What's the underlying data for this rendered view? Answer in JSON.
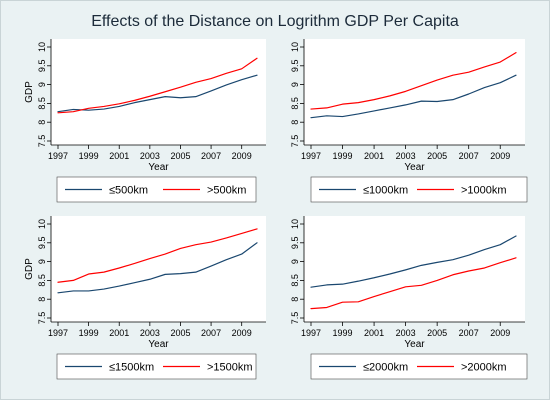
{
  "title": "Effects of the Distance on Logrithm GDP Per Capita",
  "colors": {
    "background": "#eaf2f3",
    "plot_background": "#ffffff",
    "axis": "#000000",
    "title": "#1c2b3a",
    "legend_border": "#4a4a4a",
    "legend_background": "#ffffff"
  },
  "chart_data": [
    {
      "type": "line",
      "xlabel": "Year",
      "ylabel": "GDP",
      "x": [
        1997,
        1998,
        1999,
        2000,
        2001,
        2002,
        2003,
        2004,
        2005,
        2006,
        2007,
        2008,
        2009,
        2010
      ],
      "xlim": [
        1997,
        2010
      ],
      "ylim": [
        7.5,
        10
      ],
      "xticks": [
        "1997",
        "1999",
        "2001",
        "2003",
        "2005",
        "2007",
        "2009"
      ],
      "yticks": [
        "7.5",
        "8",
        "8.5",
        "9",
        "9.5",
        "10"
      ],
      "grid": false,
      "legend_position": "bottom",
      "series": [
        {
          "name": "≤500km",
          "color": "#1a476f",
          "values": [
            8.28,
            8.34,
            8.32,
            8.35,
            8.42,
            8.52,
            8.6,
            8.68,
            8.65,
            8.68,
            8.83,
            8.99,
            9.13,
            9.25
          ]
        },
        {
          "name": ">500km",
          "color": "#ff0000",
          "values": [
            8.25,
            8.28,
            8.37,
            8.42,
            8.49,
            8.58,
            8.69,
            8.81,
            8.93,
            9.06,
            9.16,
            9.3,
            9.42,
            9.7
          ]
        }
      ]
    },
    {
      "type": "line",
      "xlabel": "Year",
      "ylabel": "",
      "x": [
        1997,
        1998,
        1999,
        2000,
        2001,
        2002,
        2003,
        2004,
        2005,
        2006,
        2007,
        2008,
        2009,
        2010
      ],
      "xlim": [
        1997,
        2010
      ],
      "ylim": [
        7.5,
        10
      ],
      "xticks": [
        "1997",
        "1999",
        "2001",
        "2003",
        "2005",
        "2007",
        "2009"
      ],
      "yticks": [
        "7.5",
        "8",
        "8.5",
        "9",
        "9.5",
        "10"
      ],
      "grid": false,
      "legend_position": "bottom",
      "series": [
        {
          "name": "≤1000km",
          "color": "#1a476f",
          "values": [
            8.12,
            8.17,
            8.15,
            8.22,
            8.3,
            8.38,
            8.46,
            8.56,
            8.55,
            8.6,
            8.75,
            8.92,
            9.05,
            9.25
          ]
        },
        {
          "name": ">1000km",
          "color": "#ff0000",
          "values": [
            8.35,
            8.38,
            8.48,
            8.52,
            8.6,
            8.7,
            8.82,
            8.97,
            9.12,
            9.25,
            9.33,
            9.47,
            9.6,
            9.85
          ]
        }
      ]
    },
    {
      "type": "line",
      "xlabel": "Year",
      "ylabel": "GDP",
      "x": [
        1997,
        1998,
        1999,
        2000,
        2001,
        2002,
        2003,
        2004,
        2005,
        2006,
        2007,
        2008,
        2009,
        2010
      ],
      "xlim": [
        1997,
        2010
      ],
      "ylim": [
        7.5,
        10
      ],
      "xticks": [
        "1997",
        "1999",
        "2001",
        "2003",
        "2005",
        "2007",
        "2009"
      ],
      "yticks": [
        "7.5",
        "8",
        "8.5",
        "9",
        "9.5",
        "10"
      ],
      "grid": false,
      "legend_position": "bottom",
      "series": [
        {
          "name": "≤1500km",
          "color": "#1a476f",
          "values": [
            8.17,
            8.22,
            8.22,
            8.27,
            8.35,
            8.44,
            8.53,
            8.66,
            8.68,
            8.72,
            8.88,
            9.05,
            9.2,
            9.5
          ]
        },
        {
          "name": ">1500km",
          "color": "#ff0000",
          "values": [
            8.45,
            8.5,
            8.67,
            8.72,
            8.83,
            8.95,
            9.08,
            9.2,
            9.35,
            9.45,
            9.52,
            9.63,
            9.75,
            9.87
          ]
        }
      ]
    },
    {
      "type": "line",
      "xlabel": "Year",
      "ylabel": "",
      "x": [
        1997,
        1998,
        1999,
        2000,
        2001,
        2002,
        2003,
        2004,
        2005,
        2006,
        2007,
        2008,
        2009,
        2010
      ],
      "xlim": [
        1997,
        2010
      ],
      "ylim": [
        7.5,
        10
      ],
      "xticks": [
        "1997",
        "1999",
        "2001",
        "2003",
        "2005",
        "2007",
        "2009"
      ],
      "yticks": [
        "7.5",
        "8",
        "8.5",
        "9",
        "9.5",
        "10"
      ],
      "grid": false,
      "legend_position": "bottom",
      "series": [
        {
          "name": "≤2000km",
          "color": "#1a476f",
          "values": [
            8.32,
            8.38,
            8.4,
            8.48,
            8.57,
            8.67,
            8.78,
            8.9,
            8.98,
            9.05,
            9.17,
            9.32,
            9.45,
            9.68
          ]
        },
        {
          "name": ">2000km",
          "color": "#ff0000",
          "values": [
            7.75,
            7.78,
            7.92,
            7.93,
            8.07,
            8.2,
            8.33,
            8.37,
            8.5,
            8.65,
            8.75,
            8.83,
            8.97,
            9.1
          ]
        }
      ]
    }
  ]
}
